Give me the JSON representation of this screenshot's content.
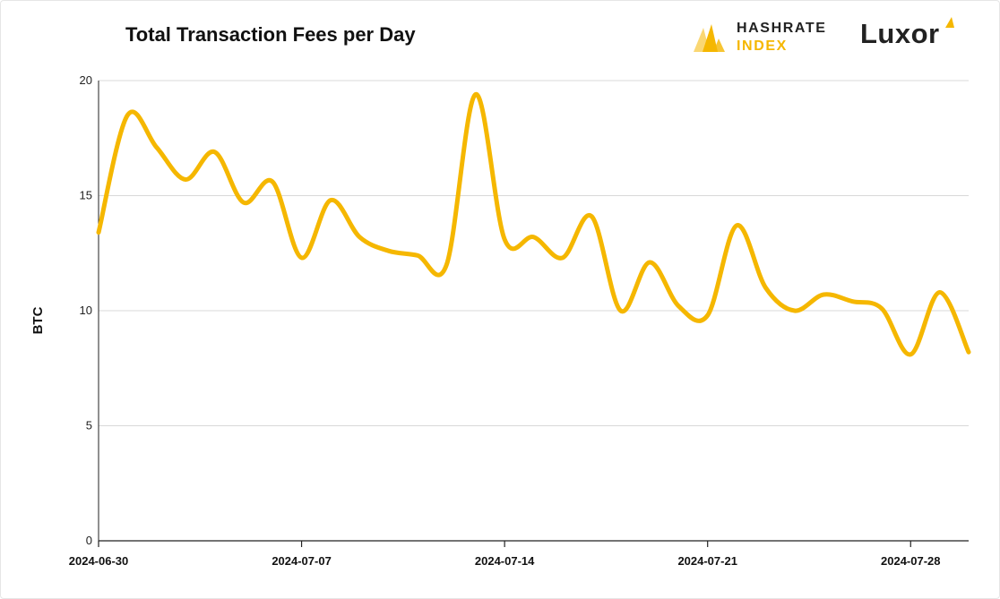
{
  "header": {
    "title": "Total Transaction Fees per Day"
  },
  "logos": {
    "hashrate_index": {
      "line1": "HASHRATE",
      "line2": "INDEX",
      "icon": "hashrate-index-logo-icon"
    },
    "luxor": {
      "word": "Luxor",
      "icon": "luxor-logo-icon"
    }
  },
  "colors": {
    "line": "#f5b700",
    "grid": "#d9d9d9",
    "axis": "#222222",
    "brand_yellow": "#f5b700"
  },
  "chart_data": {
    "type": "line",
    "title": "Total Transaction Fees per Day",
    "xlabel": "",
    "ylabel": "BTC",
    "ylim": [
      0,
      20
    ],
    "yticks": [
      0,
      5,
      10,
      15,
      20
    ],
    "xlim": [
      "2024-06-30",
      "2024-07-30"
    ],
    "xticks": [
      "2024-06-30",
      "2024-07-07",
      "2024-07-14",
      "2024-07-21",
      "2024-07-28"
    ],
    "grid": "horizontal",
    "smooth": true,
    "series": [
      {
        "name": "",
        "color": "#f5b700",
        "x": [
          "2024-06-30",
          "2024-07-01",
          "2024-07-02",
          "2024-07-03",
          "2024-07-04",
          "2024-07-05",
          "2024-07-06",
          "2024-07-07",
          "2024-07-08",
          "2024-07-09",
          "2024-07-10",
          "2024-07-11",
          "2024-07-12",
          "2024-07-13",
          "2024-07-14",
          "2024-07-15",
          "2024-07-16",
          "2024-07-17",
          "2024-07-18",
          "2024-07-19",
          "2024-07-20",
          "2024-07-21",
          "2024-07-22",
          "2024-07-23",
          "2024-07-24",
          "2024-07-25",
          "2024-07-26",
          "2024-07-27",
          "2024-07-28",
          "2024-07-29",
          "2024-07-30"
        ],
        "values": [
          13.4,
          18.5,
          17.1,
          15.7,
          16.9,
          14.7,
          15.6,
          12.3,
          14.8,
          13.2,
          12.6,
          12.4,
          12.0,
          19.4,
          13.1,
          13.2,
          12.3,
          14.1,
          10.0,
          12.1,
          10.2,
          9.8,
          13.7,
          11.0,
          10.0,
          10.7,
          10.4,
          10.1,
          8.1,
          10.8,
          8.2
        ]
      }
    ]
  }
}
